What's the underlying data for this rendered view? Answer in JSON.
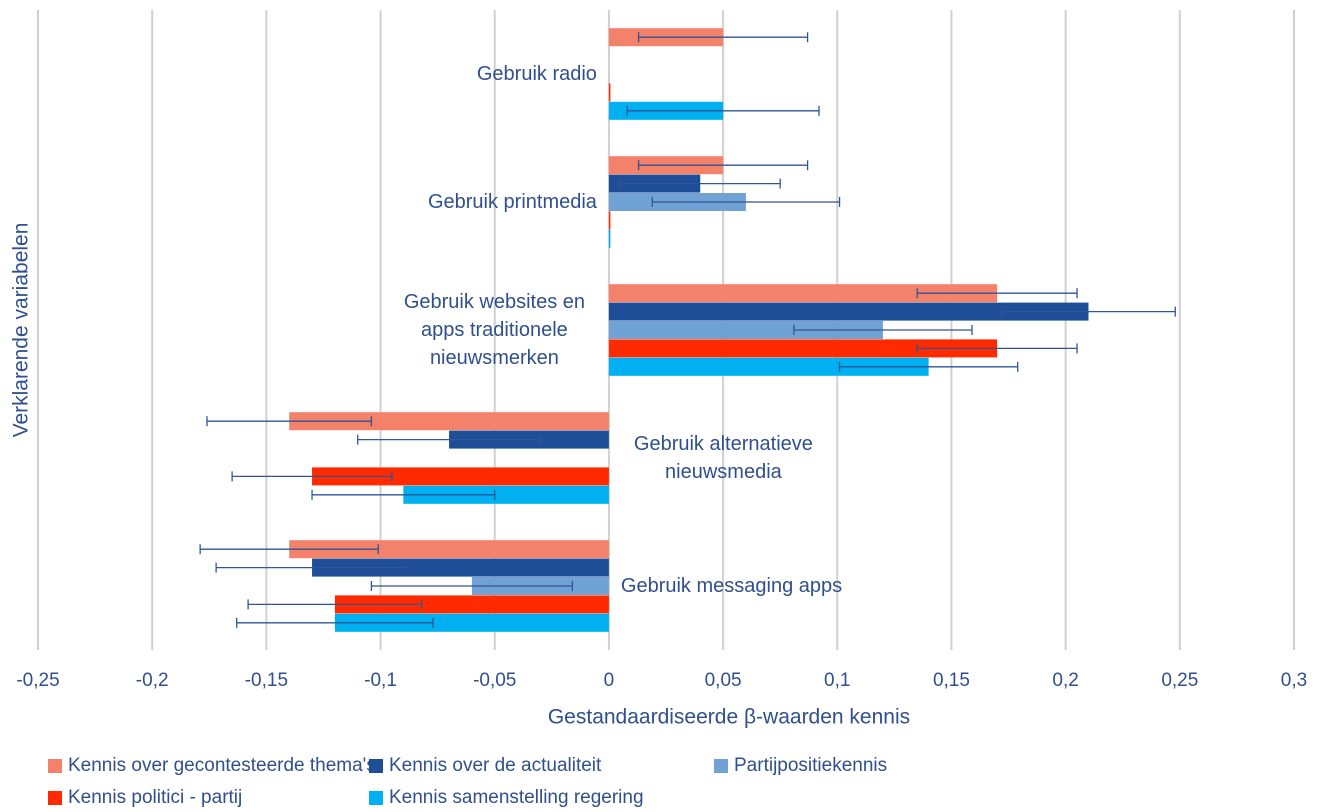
{
  "chart_data": {
    "type": "barh",
    "xlabel": "Gestandaardiseerde β-waarden kennis",
    "ylabel": "Verklarende variabelen",
    "categories": [
      "Gebruik radio",
      "Gebruik printmedia",
      "Gebruik websites en apps traditionele nieuwsmerken",
      "Gebruik alternatieve nieuwsmedia",
      "Gebruik messaging apps"
    ],
    "series": [
      {
        "name": "Kennis over gecontesteerde thema's",
        "color": "#f4826a",
        "values": [
          0.05,
          0.05,
          0.17,
          -0.14,
          -0.14
        ],
        "errors": [
          0.037,
          0.037,
          0.035,
          0.036,
          0.039
        ]
      },
      {
        "name": "Kennis over de actualiteit",
        "color": "#1f4e99",
        "values": [
          null,
          0.04,
          0.21,
          -0.07,
          -0.13
        ],
        "errors": [
          null,
          0.035,
          0.038,
          0.04,
          0.042
        ]
      },
      {
        "name": "Partijpositiekennis",
        "color": "#71a2d6",
        "values": [
          null,
          0.06,
          0.12,
          null,
          -0.06
        ],
        "errors": [
          null,
          0.041,
          0.039,
          null,
          0.044
        ]
      },
      {
        "name": "Kennis politici - partij",
        "color": "#ff2a00",
        "values": [
          0,
          0,
          0.17,
          -0.13,
          -0.12
        ],
        "errors": [
          null,
          null,
          0.035,
          0.035,
          0.038
        ]
      },
      {
        "name": "Kennis samenstelling regering",
        "color": "#00b0f0",
        "values": [
          0.05,
          0,
          0.14,
          -0.09,
          -0.12
        ],
        "errors": [
          0.042,
          null,
          0.039,
          0.04,
          0.043
        ]
      }
    ],
    "xlim": [
      -0.25,
      0.3
    ],
    "xticks": [
      {
        "value": -0.25,
        "label": "-0,25"
      },
      {
        "value": -0.2,
        "label": "-0,2"
      },
      {
        "value": -0.15,
        "label": "-0,15"
      },
      {
        "value": -0.1,
        "label": "-0,1"
      },
      {
        "value": -0.05,
        "label": "-0,05"
      },
      0,
      {
        "value": 0.05,
        "label": "0,05"
      },
      {
        "value": 0.1,
        "label": "0,1"
      },
      {
        "value": 0.15,
        "label": "0,15"
      },
      {
        "value": 0.2,
        "label": "0,2"
      },
      {
        "value": 0.25,
        "label": "0,25"
      },
      {
        "value": 0.3,
        "label": "0,3"
      }
    ],
    "grid": true,
    "legend": "bottom"
  }
}
